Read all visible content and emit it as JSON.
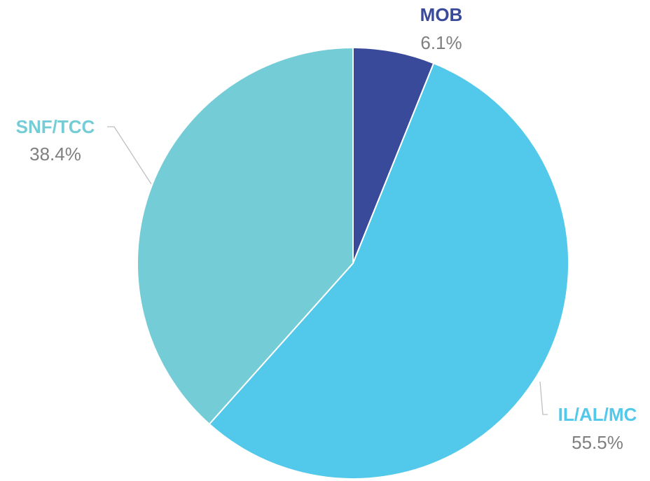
{
  "chart_data": {
    "type": "pie",
    "slices": [
      {
        "label": "MOB",
        "value": 6.1,
        "value_label": "6.1%",
        "color": "#3a4a9b",
        "label_color": "#3a4a9b"
      },
      {
        "label": "IL/AL/MC",
        "value": 55.5,
        "value_label": "55.5%",
        "color": "#52c8ea",
        "label_color": "#52c8ea"
      },
      {
        "label": "SNF/TCC",
        "value": 38.4,
        "value_label": "38.4%",
        "color": "#74ccd6",
        "label_color": "#74ccd6"
      }
    ],
    "start_angle": "12 o'clock",
    "direction": "clockwise",
    "separator_color": "#ffffff",
    "leader_line_color": "#bfbfbf",
    "value_label_color": "#7f7f7f"
  }
}
